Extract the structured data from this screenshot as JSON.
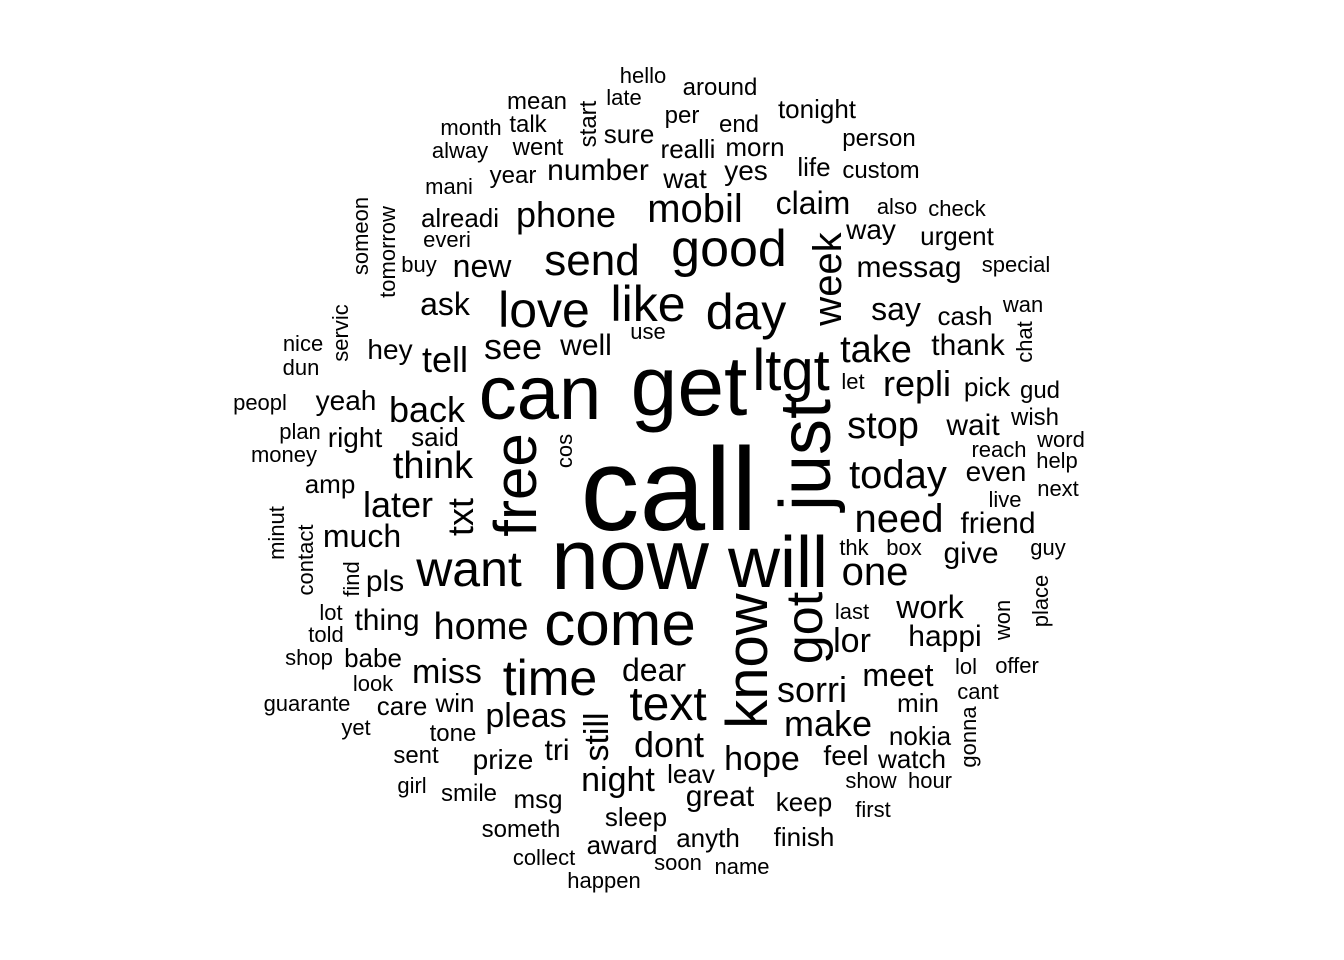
{
  "cloud": {
    "text_color": "#000000",
    "background": "#ffffff",
    "words": [
      {
        "text": "call",
        "rotated": false
      },
      {
        "text": "now",
        "rotated": false
      },
      {
        "text": "can",
        "rotated": false
      },
      {
        "text": "get",
        "rotated": false
      },
      {
        "text": "will",
        "rotated": false
      },
      {
        "text": "just",
        "rotated": true
      },
      {
        "text": "ltgt",
        "rotated": false
      },
      {
        "text": "free",
        "rotated": true
      },
      {
        "text": "come",
        "rotated": false
      },
      {
        "text": "know",
        "rotated": true
      },
      {
        "text": "got",
        "rotated": true
      },
      {
        "text": "good",
        "rotated": false
      },
      {
        "text": "like",
        "rotated": false
      },
      {
        "text": "love",
        "rotated": false
      },
      {
        "text": "day",
        "rotated": false
      },
      {
        "text": "time",
        "rotated": false
      },
      {
        "text": "want",
        "rotated": false
      },
      {
        "text": "send",
        "rotated": false
      },
      {
        "text": "text",
        "rotated": false
      },
      {
        "text": "today",
        "rotated": false
      },
      {
        "text": "one",
        "rotated": false
      },
      {
        "text": "need",
        "rotated": false
      },
      {
        "text": "mobil",
        "rotated": false
      },
      {
        "text": "week",
        "rotated": true
      },
      {
        "text": "take",
        "rotated": false
      },
      {
        "text": "home",
        "rotated": false
      },
      {
        "text": "sorri",
        "rotated": false
      },
      {
        "text": "think",
        "rotated": false
      },
      {
        "text": "make",
        "rotated": false
      },
      {
        "text": "stop",
        "rotated": false
      },
      {
        "text": "repli",
        "rotated": false
      },
      {
        "text": "phone",
        "rotated": false
      },
      {
        "text": "see",
        "rotated": false
      },
      {
        "text": "txt",
        "rotated": true
      },
      {
        "text": "back",
        "rotated": false
      },
      {
        "text": "tell",
        "rotated": false
      },
      {
        "text": "later",
        "rotated": false
      },
      {
        "text": "dont",
        "rotated": false
      },
      {
        "text": "hope",
        "rotated": false
      },
      {
        "text": "pleas",
        "rotated": false
      },
      {
        "text": "night",
        "rotated": false
      },
      {
        "text": "lor",
        "rotated": false
      },
      {
        "text": "still",
        "rotated": true
      },
      {
        "text": "miss",
        "rotated": false
      },
      {
        "text": "dear",
        "rotated": false
      },
      {
        "text": "work",
        "rotated": false
      },
      {
        "text": "meet",
        "rotated": false
      },
      {
        "text": "messag",
        "rotated": false
      },
      {
        "text": "claim",
        "rotated": false
      },
      {
        "text": "new",
        "rotated": false
      },
      {
        "text": "say",
        "rotated": false
      },
      {
        "text": "much",
        "rotated": false
      },
      {
        "text": "wait",
        "rotated": false
      },
      {
        "text": "happi",
        "rotated": false
      },
      {
        "text": "great",
        "rotated": false
      },
      {
        "text": "ask",
        "rotated": false
      },
      {
        "text": "number",
        "rotated": false
      },
      {
        "text": "well",
        "rotated": false
      },
      {
        "text": "thank",
        "rotated": false
      },
      {
        "text": "give",
        "rotated": false
      },
      {
        "text": "friend",
        "rotated": false
      },
      {
        "text": "yes",
        "rotated": false
      },
      {
        "text": "wat",
        "rotated": false
      },
      {
        "text": "tri",
        "rotated": false
      },
      {
        "text": "hey",
        "rotated": false
      },
      {
        "text": "thing",
        "rotated": false
      },
      {
        "text": "pls",
        "rotated": false
      },
      {
        "text": "feel",
        "rotated": false
      },
      {
        "text": "realli",
        "rotated": false
      },
      {
        "text": "morn",
        "rotated": false
      },
      {
        "text": "prize",
        "rotated": false
      },
      {
        "text": "even",
        "rotated": false
      },
      {
        "text": "way",
        "rotated": false
      },
      {
        "text": "sleep",
        "rotated": false
      },
      {
        "text": "msg",
        "rotated": false
      },
      {
        "text": "keep",
        "rotated": false
      },
      {
        "text": "leav",
        "rotated": false
      },
      {
        "text": "min",
        "rotated": false
      },
      {
        "text": "yeah",
        "rotated": false
      },
      {
        "text": "right",
        "rotated": false
      },
      {
        "text": "said",
        "rotated": false
      },
      {
        "text": "alreadi",
        "rotated": false
      },
      {
        "text": "nokia",
        "rotated": false
      },
      {
        "text": "watch",
        "rotated": false
      },
      {
        "text": "urgent",
        "rotated": false
      },
      {
        "text": "cash",
        "rotated": false
      },
      {
        "text": "pick",
        "rotated": false
      },
      {
        "text": "wish",
        "rotated": false
      },
      {
        "text": "win",
        "rotated": false
      },
      {
        "text": "care",
        "rotated": false
      },
      {
        "text": "babe",
        "rotated": false
      },
      {
        "text": "life",
        "rotated": false
      },
      {
        "text": "sure",
        "rotated": false
      },
      {
        "text": "amp",
        "rotated": false
      },
      {
        "text": "anyth",
        "rotated": false
      },
      {
        "text": "finish",
        "rotated": false
      },
      {
        "text": "award",
        "rotated": false
      },
      {
        "text": "someth",
        "rotated": false
      },
      {
        "text": "smile",
        "rotated": false
      },
      {
        "text": "tonight",
        "rotated": false
      },
      {
        "text": "person",
        "rotated": false
      },
      {
        "text": "custom",
        "rotated": false
      },
      {
        "text": "around",
        "rotated": false
      },
      {
        "text": "end",
        "rotated": false
      },
      {
        "text": "per",
        "rotated": false
      },
      {
        "text": "year",
        "rotated": false
      },
      {
        "text": "went",
        "rotated": false
      },
      {
        "text": "talk",
        "rotated": false
      },
      {
        "text": "mean",
        "rotated": false
      },
      {
        "text": "month",
        "rotated": false
      },
      {
        "text": "alway",
        "rotated": false
      },
      {
        "text": "late",
        "rotated": false
      },
      {
        "text": "hello",
        "rotated": false
      },
      {
        "text": "start",
        "rotated": true
      },
      {
        "text": "mani",
        "rotated": false
      },
      {
        "text": "everi",
        "rotated": false
      },
      {
        "text": "buy",
        "rotated": false
      },
      {
        "text": "someon",
        "rotated": true
      },
      {
        "text": "tomorrow",
        "rotated": true
      },
      {
        "text": "servic",
        "rotated": true
      },
      {
        "text": "nice",
        "rotated": false
      },
      {
        "text": "dun",
        "rotated": false
      },
      {
        "text": "peopl",
        "rotated": false
      },
      {
        "text": "plan",
        "rotated": false
      },
      {
        "text": "money",
        "rotated": false
      },
      {
        "text": "minut",
        "rotated": true
      },
      {
        "text": "contact",
        "rotated": true
      },
      {
        "text": "find",
        "rotated": true
      },
      {
        "text": "lot",
        "rotated": false
      },
      {
        "text": "told",
        "rotated": false
      },
      {
        "text": "shop",
        "rotated": false
      },
      {
        "text": "look",
        "rotated": false
      },
      {
        "text": "guarante",
        "rotated": false
      },
      {
        "text": "yet",
        "rotated": false
      },
      {
        "text": "tone",
        "rotated": false
      },
      {
        "text": "sent",
        "rotated": false
      },
      {
        "text": "girl",
        "rotated": false
      },
      {
        "text": "collect",
        "rotated": false
      },
      {
        "text": "happen",
        "rotated": false
      },
      {
        "text": "soon",
        "rotated": false
      },
      {
        "text": "name",
        "rotated": false
      },
      {
        "text": "show",
        "rotated": false
      },
      {
        "text": "hour",
        "rotated": false
      },
      {
        "text": "first",
        "rotated": false
      },
      {
        "text": "gonna",
        "rotated": true
      },
      {
        "text": "lol",
        "rotated": false
      },
      {
        "text": "cant",
        "rotated": false
      },
      {
        "text": "offer",
        "rotated": false
      },
      {
        "text": "won",
        "rotated": true
      },
      {
        "text": "place",
        "rotated": true
      },
      {
        "text": "guy",
        "rotated": false
      },
      {
        "text": "thk",
        "rotated": false
      },
      {
        "text": "box",
        "rotated": false
      },
      {
        "text": "last",
        "rotated": false
      },
      {
        "text": "live",
        "rotated": false
      },
      {
        "text": "next",
        "rotated": false
      },
      {
        "text": "help",
        "rotated": false
      },
      {
        "text": "word",
        "rotated": false
      },
      {
        "text": "reach",
        "rotated": false
      },
      {
        "text": "gud",
        "rotated": false
      },
      {
        "text": "chat",
        "rotated": true
      },
      {
        "text": "wan",
        "rotated": false
      },
      {
        "text": "special",
        "rotated": false
      },
      {
        "text": "check",
        "rotated": false
      },
      {
        "text": "also",
        "rotated": false
      },
      {
        "text": "let",
        "rotated": false
      },
      {
        "text": "use",
        "rotated": false
      },
      {
        "text": "cos",
        "rotated": true
      }
    ]
  }
}
